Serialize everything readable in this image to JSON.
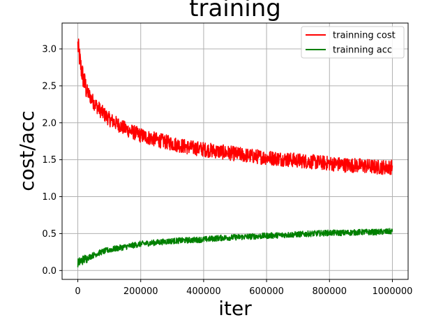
{
  "chart_data": {
    "type": "line",
    "title": "training",
    "xlabel": "iter",
    "ylabel": "cost/acc",
    "xlim": [
      -50000,
      1050000
    ],
    "ylim": [
      -0.12,
      3.35
    ],
    "xticks": [
      0,
      200000,
      400000,
      600000,
      800000,
      1000000
    ],
    "xtick_labels": [
      "0",
      "200000",
      "400000",
      "600000",
      "800000",
      "1000000"
    ],
    "yticks": [
      0.0,
      0.5,
      1.0,
      1.5,
      2.0,
      2.5,
      3.0
    ],
    "ytick_labels": [
      "0.0",
      "0.5",
      "1.0",
      "1.5",
      "2.0",
      "2.5",
      "3.0"
    ],
    "grid": true,
    "legend_position": "top-right",
    "series": [
      {
        "name": "trainning cost",
        "color": "#ff0000",
        "x": [
          0,
          10000,
          20000,
          30000,
          50000,
          75000,
          100000,
          150000,
          200000,
          250000,
          300000,
          350000,
          400000,
          450000,
          500000,
          550000,
          600000,
          650000,
          700000,
          750000,
          800000,
          850000,
          900000,
          950000,
          1000000
        ],
        "y": [
          3.05,
          2.75,
          2.55,
          2.42,
          2.28,
          2.15,
          2.05,
          1.92,
          1.83,
          1.77,
          1.72,
          1.67,
          1.64,
          1.61,
          1.58,
          1.55,
          1.53,
          1.51,
          1.49,
          1.47,
          1.45,
          1.43,
          1.42,
          1.4,
          1.4
        ],
        "noise": 0.1
      },
      {
        "name": "trainning acc",
        "color": "#008000",
        "x": [
          0,
          10000,
          20000,
          30000,
          50000,
          75000,
          100000,
          150000,
          200000,
          250000,
          300000,
          350000,
          400000,
          450000,
          500000,
          550000,
          600000,
          650000,
          700000,
          750000,
          800000,
          850000,
          900000,
          950000,
          1000000
        ],
        "y": [
          0.1,
          0.13,
          0.15,
          0.17,
          0.21,
          0.25,
          0.28,
          0.32,
          0.36,
          0.38,
          0.4,
          0.41,
          0.42,
          0.44,
          0.45,
          0.46,
          0.47,
          0.48,
          0.49,
          0.5,
          0.51,
          0.51,
          0.52,
          0.52,
          0.53
        ],
        "noise": 0.04
      }
    ]
  }
}
